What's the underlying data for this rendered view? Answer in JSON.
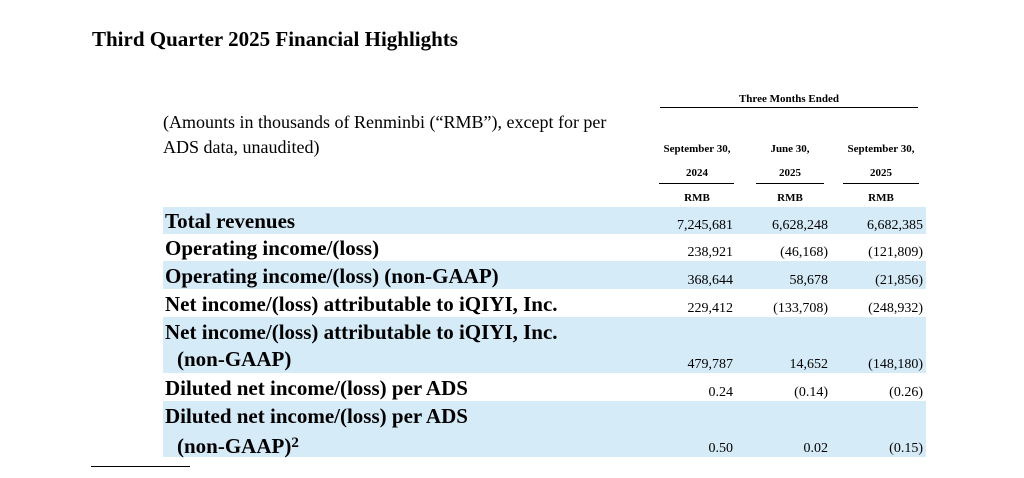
{
  "title": "Third Quarter 2025 Financial Highlights",
  "note": "(Amounts in thousands of Renminbi (“RMB”), except for per ADS data, unaudited)",
  "header": {
    "group_label": "Three Months Ended",
    "columns": [
      {
        "line1": "September 30,",
        "line2": "2024",
        "currency": "RMB"
      },
      {
        "line1": "June 30,",
        "line2": "2025",
        "currency": "RMB"
      },
      {
        "line1": "September 30,",
        "line2": "2025",
        "currency": "RMB"
      }
    ]
  },
  "rows": [
    {
      "label": "Total revenues",
      "values": [
        "7,245,681",
        "6,628,248",
        "6,682,385"
      ]
    },
    {
      "label": "Operating income/(loss)",
      "values": [
        "238,921",
        "(46,168)",
        "(121,809)"
      ]
    },
    {
      "label": "Operating income/(loss) (non-GAAP)",
      "values": [
        "368,644",
        "58,678",
        "(21,856)"
      ]
    },
    {
      "label": "Net income/(loss) attributable to iQIYI, Inc.",
      "values": [
        "229,412",
        "(133,708)",
        "(248,932)"
      ]
    },
    {
      "label": "Net income/(loss) attributable to iQIYI, Inc.",
      "label2": "(non-GAAP)",
      "values": [
        "479,787",
        "14,652",
        "(148,180)"
      ]
    },
    {
      "label": "Diluted net income/(loss) per ADS",
      "values": [
        "0.24",
        "(0.14)",
        "(0.26)"
      ]
    },
    {
      "label": "Diluted net income/(loss) per ADS",
      "label2": "(non-GAAP)",
      "footnote": "2",
      "values": [
        "0.50",
        "0.02",
        "(0.15)"
      ]
    }
  ]
}
